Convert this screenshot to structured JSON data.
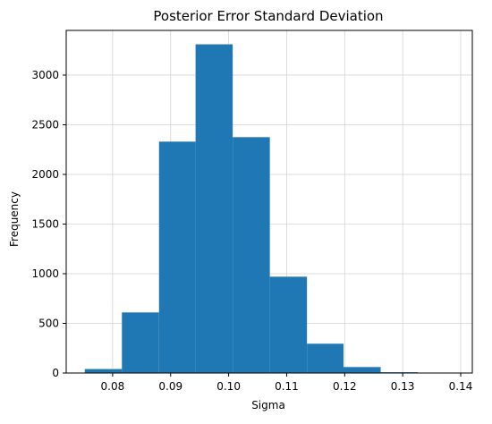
{
  "chart_data": {
    "type": "bar",
    "title": "Posterior Error Standard Deviation",
    "xlabel": "Sigma",
    "ylabel": "Frequency",
    "xlim": [
      0.072,
      0.142
    ],
    "ylim": [
      0,
      3450
    ],
    "xticks": [
      0.08,
      0.09,
      0.1,
      0.11,
      0.12,
      0.13,
      0.14
    ],
    "xtick_labels": [
      "0.08",
      "0.09",
      "0.10",
      "0.11",
      "0.12",
      "0.13",
      "0.14"
    ],
    "yticks": [
      0,
      500,
      1000,
      1500,
      2000,
      2500,
      3000
    ],
    "ytick_labels": [
      "0",
      "500",
      "1000",
      "1500",
      "2000",
      "2500",
      "3000"
    ],
    "bin_edges": [
      0.0752,
      0.0816,
      0.088,
      0.0943,
      0.1007,
      0.1071,
      0.1135,
      0.1198,
      0.1262,
      0.1326,
      0.139
    ],
    "counts": [
      40,
      610,
      2330,
      3310,
      2375,
      970,
      295,
      60,
      8,
      4
    ],
    "grid": true,
    "bar_color": "#1f77b4",
    "grid_color": "#d3d3d3"
  }
}
